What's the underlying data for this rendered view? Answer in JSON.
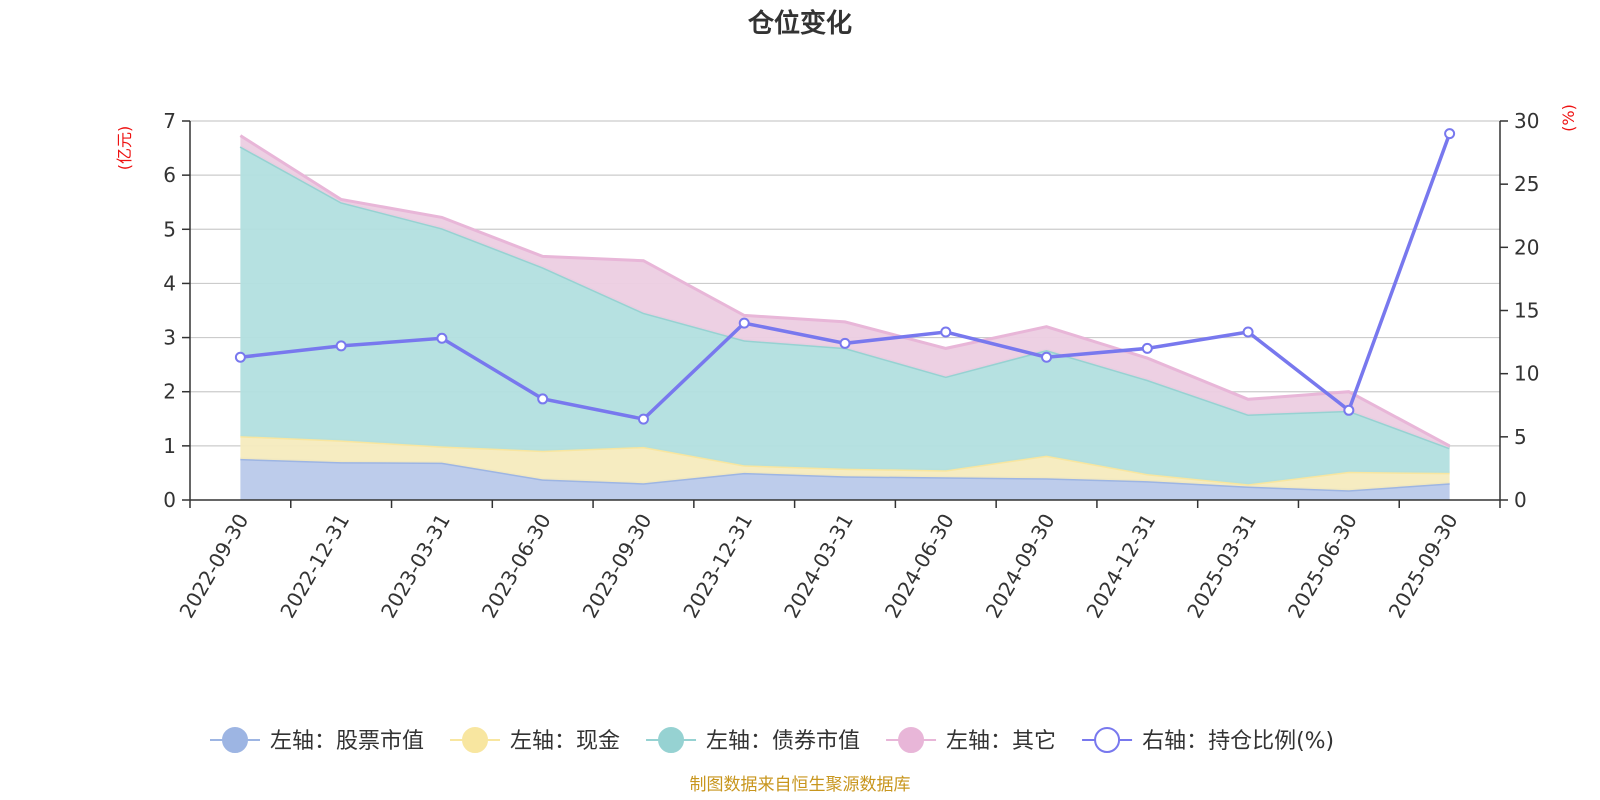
{
  "chart_data": {
    "type": "area",
    "title": "仓位变化",
    "left_axis_unit": "(亿元)",
    "right_axis_unit": "(%)",
    "categories": [
      "2022-09-30",
      "2022-12-31",
      "2023-03-31",
      "2023-06-30",
      "2023-09-30",
      "2023-12-31",
      "2024-03-31",
      "2024-06-30",
      "2024-09-30",
      "2024-12-31",
      "2025-03-31",
      "2025-06-30",
      "2025-09-30"
    ],
    "left_ylim": [
      0,
      7
    ],
    "left_ticks": [
      0,
      1,
      2,
      3,
      4,
      5,
      6,
      7
    ],
    "right_ylim": [
      0,
      30
    ],
    "right_ticks": [
      0,
      5,
      10,
      15,
      20,
      25,
      30
    ],
    "stacked_series": [
      {
        "name": "左轴：股票市值",
        "color": "#9db5e3",
        "fill": "#b9c9ea",
        "values": [
          0.76,
          0.7,
          0.69,
          0.38,
          0.31,
          0.5,
          0.44,
          0.42,
          0.4,
          0.35,
          0.25,
          0.18,
          0.31
        ]
      },
      {
        "name": "左轴：现金",
        "color": "#f8e6a0",
        "fill": "#f6ebbe",
        "values": [
          0.42,
          0.4,
          0.3,
          0.53,
          0.67,
          0.14,
          0.14,
          0.13,
          0.42,
          0.13,
          0.04,
          0.34,
          0.19
        ]
      },
      {
        "name": "左轴：债券市值",
        "color": "#96d2d2",
        "fill": "#b2dfdf",
        "values": [
          5.35,
          4.4,
          4.03,
          3.39,
          2.48,
          2.31,
          2.23,
          1.73,
          1.95,
          1.74,
          1.29,
          1.13,
          0.46
        ]
      },
      {
        "name": "左轴：其它",
        "color": "#e8b6d8",
        "fill": "#eccde2",
        "values": [
          0.2,
          0.05,
          0.2,
          0.2,
          0.96,
          0.46,
          0.48,
          0.52,
          0.43,
          0.4,
          0.28,
          0.35,
          0.04
        ]
      }
    ],
    "line_series": {
      "name": "右轴：持仓比例(%)",
      "color": "#7878ee",
      "values": [
        11.3,
        12.2,
        12.8,
        8.0,
        6.4,
        14.0,
        12.4,
        13.3,
        11.3,
        12.0,
        13.3,
        7.1,
        29.0
      ]
    },
    "source_note": "制图数据来自恒生聚源数据库"
  }
}
